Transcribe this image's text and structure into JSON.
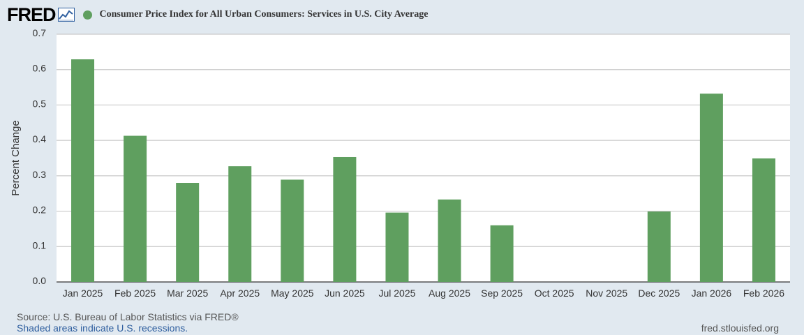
{
  "brand": {
    "name": "FRED"
  },
  "legend": {
    "label": "Consumer Price Index for All Urban Consumers: Services in U.S. City Average",
    "color": "#5f9f5f"
  },
  "chart_data": {
    "type": "bar",
    "title": "Consumer Price Index for All Urban Consumers: Services in U.S. City Average",
    "xlabel": "",
    "ylabel": "Percent Change",
    "ylim": [
      0,
      0.7
    ],
    "yticks": [
      "0.0",
      "0.1",
      "0.2",
      "0.3",
      "0.4",
      "0.5",
      "0.6",
      "0.7"
    ],
    "grid": true,
    "categories": [
      "Jan 2025",
      "Feb 2025",
      "Mar 2025",
      "Apr 2025",
      "May 2025",
      "Jun 2025",
      "Jul 2025",
      "Aug 2025",
      "Sep 2025",
      "Oct 2025",
      "Nov 2025",
      "Dec 2025",
      "Jan 2026",
      "Feb 2026"
    ],
    "values": [
      0.629,
      0.413,
      0.28,
      0.327,
      0.289,
      0.353,
      0.196,
      0.233,
      0.16,
      null,
      null,
      0.199,
      0.532,
      0.349
    ],
    "series_name": "Consumer Price Index for All Urban Consumers: Services in U.S. City Average",
    "bar_color": "#5f9f5f"
  },
  "footer": {
    "source": "Source: U.S. Bureau of Labor Statistics via FRED®",
    "recessions": "Shaded areas indicate U.S. recessions.",
    "url": "fred.stlouisfed.org"
  }
}
